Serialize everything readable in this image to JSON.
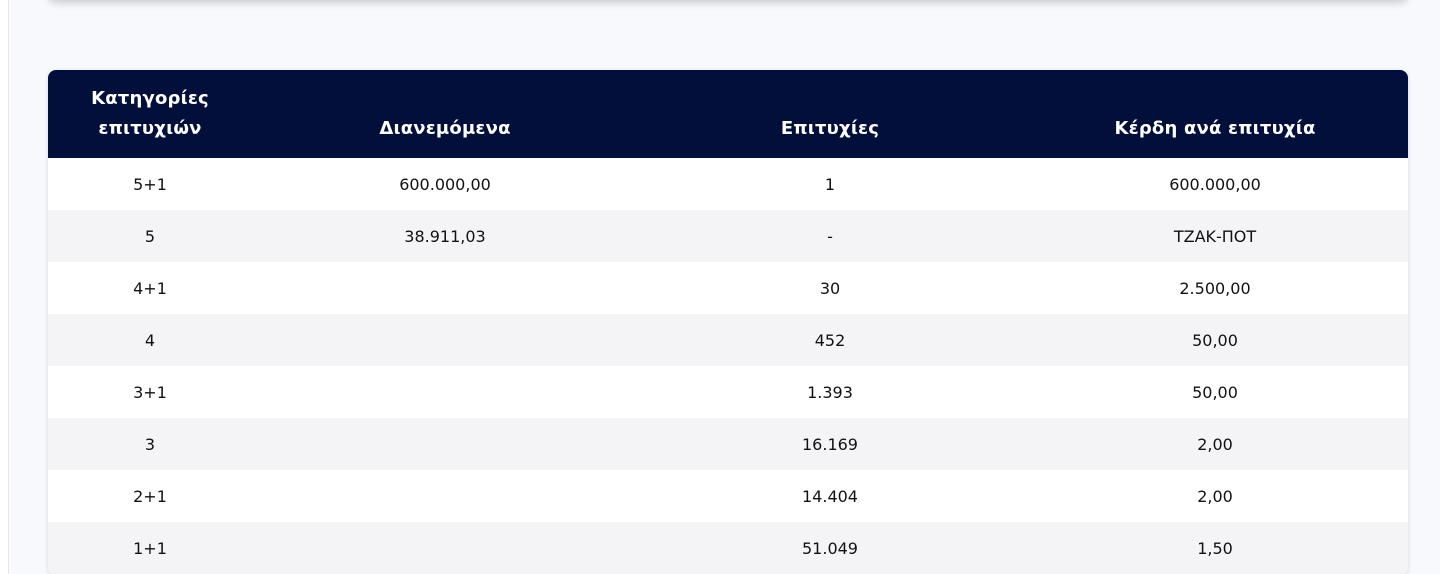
{
  "table": {
    "headers": {
      "category_line1": "Κατηγορίες",
      "category_line2": "επιτυχιών",
      "distributed": "Διανεμόμενα",
      "winners": "Επιτυχίες",
      "prize_per_winner": "Κέρδη ανά επιτυχία"
    },
    "rows": [
      {
        "category": "5+1",
        "distributed": "600.000,00",
        "winners": "1",
        "prize": "600.000,00"
      },
      {
        "category": "5",
        "distributed": "38.911,03",
        "winners": "-",
        "prize": "ΤΖΑΚ-ΠΟΤ"
      },
      {
        "category": "4+1",
        "distributed": "",
        "winners": "30",
        "prize": "2.500,00"
      },
      {
        "category": "4",
        "distributed": "",
        "winners": "452",
        "prize": "50,00"
      },
      {
        "category": "3+1",
        "distributed": "",
        "winners": "1.393",
        "prize": "50,00"
      },
      {
        "category": "3",
        "distributed": "",
        "winners": "16.169",
        "prize": "2,00"
      },
      {
        "category": "2+1",
        "distributed": "",
        "winners": "14.404",
        "prize": "2,00"
      },
      {
        "category": "1+1",
        "distributed": "",
        "winners": "51.049",
        "prize": "1,50"
      }
    ]
  },
  "colors": {
    "header_bg": "#020f3a",
    "page_bg": "#f8f9fc",
    "row_alt_bg": "#f4f4f6"
  }
}
